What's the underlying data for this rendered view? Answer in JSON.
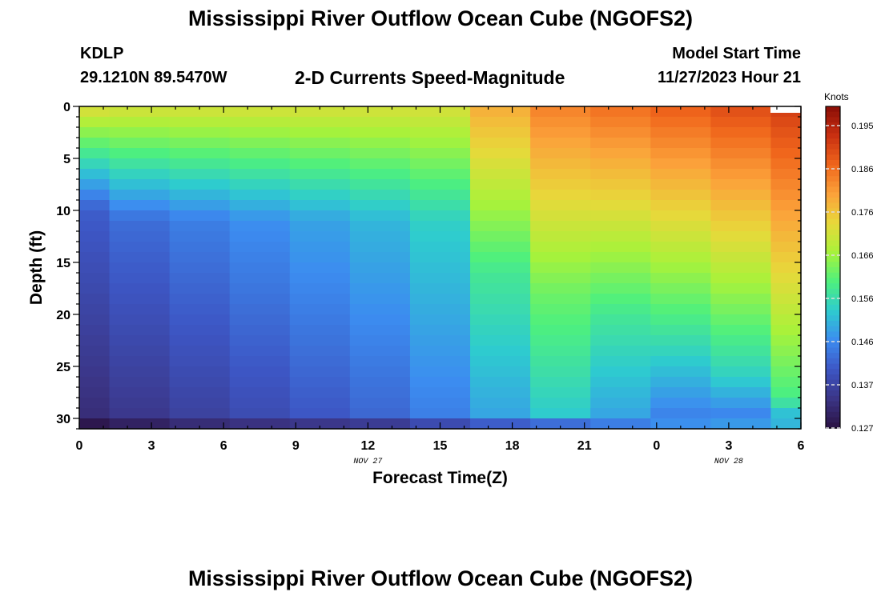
{
  "header": {
    "title": "Mississippi River Outflow Ocean Cube (NGOFS2)",
    "station": "KDLP",
    "coords": "29.1210N  89.5470W",
    "subtitle": "2-D Currents Speed-Magnitude",
    "model_start_label": "Model Start Time",
    "model_start_value": "11/27/2023 Hour 21"
  },
  "footer": {
    "title": "Mississippi River Outflow Ocean Cube (NGOFS2)"
  },
  "chart_data": {
    "type": "heatmap",
    "xlabel": "Forecast Time(Z)",
    "ylabel": "Depth (ft)",
    "x_tick_labels": [
      "0",
      "3",
      "6",
      "9",
      "12",
      "15",
      "18",
      "21",
      "0",
      "3",
      "6"
    ],
    "date_labels": [
      {
        "text": "NOV 27",
        "at_hour": 12
      },
      {
        "text": "NOV 28",
        "at_hour": 27
      }
    ],
    "y_ticks": [
      0,
      5,
      10,
      15,
      20,
      25,
      30
    ],
    "xlim": [
      0,
      30
    ],
    "ylim": [
      0,
      31
    ],
    "colorbar": {
      "title": "Knots",
      "ticks": [
        "0.195",
        "0.186",
        "0.176",
        "0.166",
        "0.156",
        "0.146",
        "0.137",
        "0.127"
      ],
      "range": [
        0.127,
        0.199
      ],
      "colors": [
        "#2a1244",
        "#3b3586",
        "#3d56c4",
        "#3c8cf0",
        "#2ecbcf",
        "#4ef07e",
        "#a8f23a",
        "#e8d83a",
        "#fba23a",
        "#f0661c",
        "#c93011",
        "#8a0d06"
      ]
    },
    "x_times": [
      0,
      2.5,
      5,
      7.5,
      10,
      12.5,
      15,
      17.5,
      20,
      22.5,
      25,
      27.5,
      30
    ],
    "depth_layers": [
      0.5,
      1.5,
      2.5,
      3.5,
      4.5,
      5.5,
      6.5,
      7.5,
      8.5,
      9.5,
      10.5,
      11.5,
      12.5,
      13.5,
      14.5,
      15.5,
      16.5,
      17.5,
      18.5,
      19.5,
      20.5,
      21.5,
      22.5,
      23.5,
      24.5,
      25.5,
      26.5,
      27.5,
      28.5,
      29.5,
      30.5
    ],
    "surface_speed": [
      0.172,
      0.171,
      0.171,
      0.171,
      0.171,
      0.171,
      0.171,
      0.178,
      0.183,
      0.185,
      0.187,
      0.189,
      0.191
    ],
    "transition_depth": [
      10,
      11,
      11,
      11,
      11,
      11,
      11,
      16,
      18,
      20,
      24,
      26,
      28
    ],
    "deep_speed": [
      0.135,
      0.137,
      0.139,
      0.141,
      0.143,
      0.145,
      0.148,
      0.152,
      0.156,
      0.152,
      0.148,
      0.148,
      0.153
    ],
    "bottom_speed": [
      0.128,
      0.13,
      0.132,
      0.133,
      0.134,
      0.135,
      0.138,
      0.141,
      0.143,
      0.145,
      0.147,
      0.148,
      0.151
    ]
  }
}
